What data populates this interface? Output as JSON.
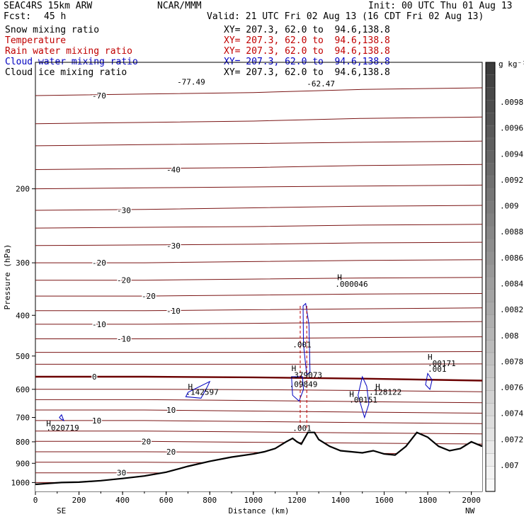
{
  "header": {
    "model": "SEAC4RS 15km ARW",
    "org": "NCAR/MMM",
    "init": "Init: 00 UTC Thu 01 Aug 13",
    "fcst_label": "Fcst:",
    "fcst_value": "45 h",
    "valid": "Valid: 21 UTC Fri 02 Aug 13 (16 CDT Fri 02 Aug 13)",
    "fields": [
      {
        "name": "Snow mixing ratio",
        "xy": "XY= 207.3, 62.0 to  94.6,138.8",
        "color": "#000000"
      },
      {
        "name": "Temperature",
        "xy": "XY= 207.3, 62.0 to  94.6,138.8",
        "color": "#c00000"
      },
      {
        "name": "Rain water mixing ratio",
        "xy": "XY= 207.3, 62.0 to  94.6,138.8",
        "color": "#c00000"
      },
      {
        "name": "Cloud water mixing ratio",
        "xy": "XY= 207.3, 62.0 to  94.6,138.8",
        "color": "#0000c0"
      },
      {
        "name": "Cloud ice mixing ratio",
        "xy": "XY= 207.3, 62.0 to  94.6,138.8",
        "color": "#000000"
      }
    ]
  },
  "chart_data": {
    "type": "cross-section",
    "xlabel": "Distance (km)",
    "ylabel": "Pressure (hPa)",
    "x_ticks": [
      0,
      200,
      400,
      600,
      800,
      1000,
      1200,
      1400,
      1600,
      1800,
      2000
    ],
    "y_ticks": [
      200,
      300,
      400,
      500,
      600,
      700,
      800,
      900,
      1000
    ],
    "xlim": [
      0,
      2050
    ],
    "ylim": [
      1050,
      100
    ],
    "y_scale": "log",
    "left_end_label": "SE",
    "right_end_label": "NW",
    "colorbar": {
      "unit_label": "g kg⁻¹",
      "ticks": [
        ".0098",
        ".0096",
        ".0094",
        ".0092",
        ".009",
        ".0088",
        ".0086",
        ".0084",
        ".0082",
        ".008",
        ".0078",
        ".0076",
        ".0074",
        ".0072",
        ".007"
      ]
    },
    "temperature_contours": [
      {
        "label": "-70",
        "p": [
          120,
          119,
          118,
          116,
          115
        ]
      },
      {
        "label": "",
        "p": [
          140,
          139,
          138,
          136,
          135
        ]
      },
      {
        "label": "",
        "p": [
          158,
          157,
          156,
          155,
          154
        ]
      },
      {
        "label": "-40",
        "p": [
          180,
          179,
          178,
          176,
          175
        ]
      },
      {
        "label": "",
        "p": [
          200,
          199,
          198,
          197,
          196
        ]
      },
      {
        "label": "-30",
        "p": [
          225,
          224,
          222,
          220,
          219
        ]
      },
      {
        "label": "",
        "p": [
          248,
          247,
          246,
          244,
          243
        ]
      },
      {
        "label": "-30",
        "p": [
          273,
          272,
          271,
          269,
          268
        ]
      },
      {
        "label": "-20",
        "p": [
          300,
          300,
          298,
          296,
          295
        ]
      },
      {
        "label": "-20",
        "p": [
          330,
          330,
          328,
          326,
          325
        ]
      },
      {
        "label": "-20",
        "p": [
          360,
          360,
          358,
          356,
          355
        ]
      },
      {
        "label": "-10",
        "p": [
          390,
          390,
          388,
          386,
          384
        ]
      },
      {
        "label": "-10",
        "p": [
          420,
          420,
          418,
          416,
          414
        ]
      },
      {
        "label": "-10",
        "p": [
          455,
          455,
          454,
          452,
          450
        ]
      },
      {
        "label": "",
        "p": [
          490,
          490,
          490,
          489,
          488
        ]
      },
      {
        "label": "",
        "p": [
          523,
          523,
          523,
          523,
          522
        ]
      },
      {
        "label": "0",
        "p": [
          560,
          560,
          562,
          566,
          572
        ],
        "bold": true
      },
      {
        "label": "",
        "p": [
          600,
          600,
          601,
          604,
          608
        ]
      },
      {
        "label": "",
        "p": [
          635,
          635,
          638,
          642,
          646
        ]
      },
      {
        "label": "10",
        "p": [
          672,
          672,
          676,
          680,
          684
        ]
      },
      {
        "label": "10",
        "p": [
          712,
          712,
          716,
          720,
          724
        ]
      },
      {
        "label": "",
        "p": [
          754,
          754,
          758,
          762,
          766
        ]
      },
      {
        "label": "20",
        "p": [
          798,
          798,
          802,
          806,
          810
        ]
      },
      {
        "label": "20",
        "p": [
          845,
          845,
          848,
          852,
          856
        ]
      },
      {
        "label": "",
        "p": [
          895,
          895,
          898,
          902,
          906
        ]
      },
      {
        "label": "30",
        "p": [
          948,
          948,
          951,
          954,
          958
        ]
      },
      {
        "label": "30",
        "p": [
          1000,
          1000,
          1004,
          1008,
          1012
        ]
      }
    ],
    "contour_x": [
      0,
      500,
      1000,
      1500,
      2050
    ],
    "terrain": {
      "x": [
        0,
        60,
        120,
        200,
        300,
        400,
        500,
        600,
        700,
        800,
        900,
        1000,
        1050,
        1100,
        1150,
        1180,
        1200,
        1220,
        1250,
        1280,
        1300,
        1350,
        1400,
        1450,
        1500,
        1550,
        1600,
        1650,
        1700,
        1750,
        1800,
        1850,
        1900,
        1950,
        2000,
        2050
      ],
      "p": [
        1010,
        1005,
        1000,
        998,
        990,
        978,
        965,
        945,
        915,
        890,
        870,
        855,
        845,
        830,
        800,
        785,
        800,
        810,
        760,
        760,
        790,
        820,
        840,
        845,
        850,
        840,
        855,
        860,
        820,
        760,
        780,
        820,
        840,
        830,
        800,
        820
      ]
    },
    "annotations": [
      {
        "text": "-77.49",
        "x": 650,
        "p": 113,
        "color": "#c00000"
      },
      {
        "text": "-62.47",
        "x": 1245,
        "p": 114,
        "color": "#c00000"
      },
      {
        "text": "H",
        "x": 1385,
        "p": 330,
        "color": "#000000"
      },
      {
        "text": ".000046",
        "x": 1375,
        "p": 342,
        "color": "#000000"
      },
      {
        "text": ".001",
        "x": 1180,
        "p": 477,
        "color": "#0000c0"
      },
      {
        "text": "H",
        "x": 1175,
        "p": 543,
        "color": "#0000c0"
      },
      {
        "text": ".379073",
        "x": 1165,
        "p": 563,
        "color": "#0000c0"
      },
      {
        "text": ".09849",
        "x": 1165,
        "p": 592,
        "color": "#c00000"
      },
      {
        "text": "H",
        "x": 1800,
        "p": 510,
        "color": "#c00000"
      },
      {
        "text": ".00171",
        "x": 1800,
        "p": 528,
        "color": "#c00000"
      },
      {
        "text": ".001",
        "x": 1800,
        "p": 545,
        "color": "#0000c0"
      },
      {
        "text": "H",
        "x": 700,
        "p": 600,
        "color": "#0000c0"
      },
      {
        "text": ".142597",
        "x": 690,
        "p": 618,
        "color": "#0000c0"
      },
      {
        "text": "H",
        "x": 1560,
        "p": 600,
        "color": "#0000c0"
      },
      {
        "text": ".128122",
        "x": 1530,
        "p": 618,
        "color": "#0000c0"
      },
      {
        "text": "H",
        "x": 1440,
        "p": 625,
        "color": "#c00000"
      },
      {
        "text": ".00151",
        "x": 1440,
        "p": 645,
        "color": "#c00000"
      },
      {
        "text": "H",
        "x": 50,
        "p": 735,
        "color": "#0000c0"
      },
      {
        "text": ".020719",
        "x": 50,
        "p": 752,
        "color": "#0000c0"
      },
      {
        "text": ".001",
        "x": 1180,
        "p": 753,
        "color": "#c00000"
      }
    ]
  }
}
